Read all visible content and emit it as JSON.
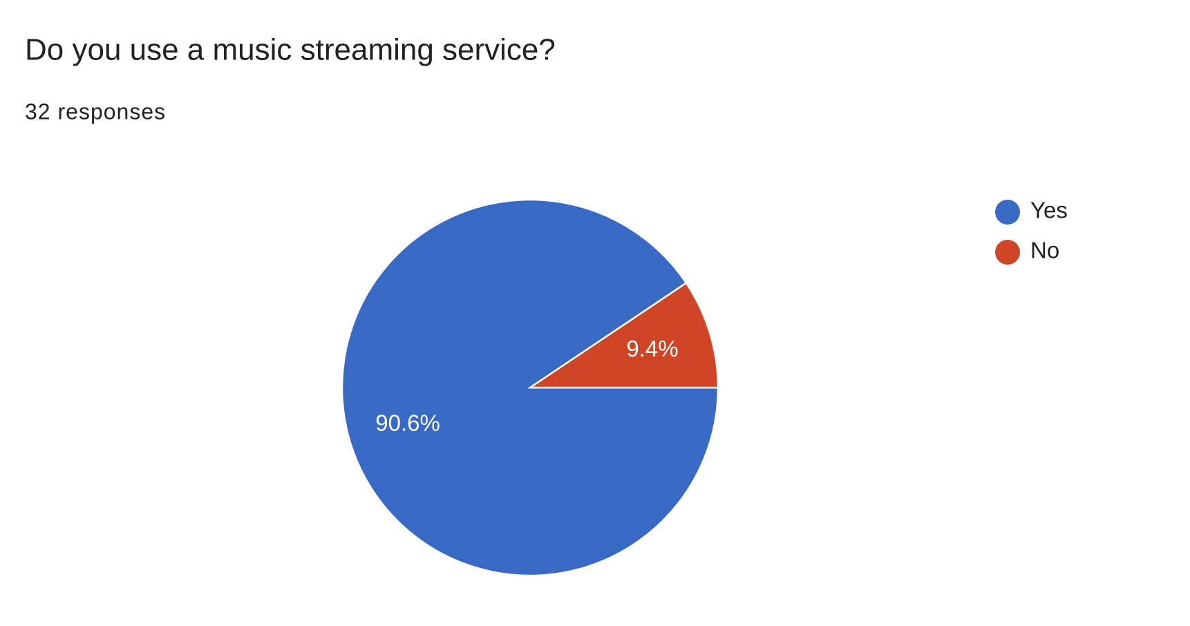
{
  "chart_data": {
    "type": "pie",
    "title": "Do you use a music streaming service?",
    "subtitle": "32 responses",
    "categories": [
      "Yes",
      "No"
    ],
    "values": [
      90.6,
      9.4
    ],
    "value_labels": [
      "90.6%",
      "9.4%"
    ],
    "colors": [
      "#3769c5",
      "#cf4526"
    ],
    "legend": "right"
  }
}
